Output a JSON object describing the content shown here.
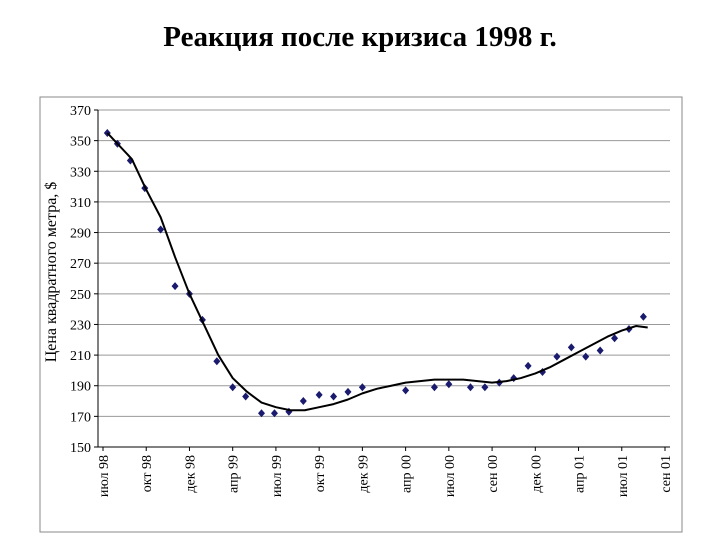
{
  "chart_data": {
    "type": "scatter_line",
    "title": "Реакция после кризиса 1998 г.",
    "ylabel": "Цена квадратного метра, $",
    "xlim": [
      0,
      39
    ],
    "xticks": [
      {
        "value": 0,
        "label": "июл 98"
      },
      {
        "value": 3,
        "label": "окт 98"
      },
      {
        "value": 6,
        "label": "дек 98"
      },
      {
        "value": 9,
        "label": "апр 99"
      },
      {
        "value": 12,
        "label": "июл 99"
      },
      {
        "value": 15,
        "label": "окт 99"
      },
      {
        "value": 18,
        "label": "дек 99"
      },
      {
        "value": 21,
        "label": "апр 00"
      },
      {
        "value": 24,
        "label": "июл 00"
      },
      {
        "value": 27,
        "label": "сен 00"
      },
      {
        "value": 30,
        "label": "дек 00"
      },
      {
        "value": 33,
        "label": "апр 01"
      },
      {
        "value": 36,
        "label": "июл 01"
      },
      {
        "value": 39,
        "label": "сен 01"
      }
    ],
    "ylim": [
      150,
      370
    ],
    "yticks": [
      150,
      170,
      190,
      210,
      230,
      250,
      270,
      290,
      310,
      330,
      350,
      370
    ],
    "grid": true,
    "series": [
      {
        "kind": "points",
        "color": "#1a1a6e",
        "x": [
          0.3,
          1.0,
          1.9,
          2.9,
          4.0,
          5.0,
          6.0,
          6.9,
          7.9,
          9.0,
          9.9,
          11.0,
          11.9,
          12.9,
          13.9,
          15.0,
          16.0,
          17.0,
          18.0,
          21.0,
          23.0,
          24.0,
          25.5,
          26.5,
          27.5,
          28.5,
          29.5,
          30.5,
          31.5,
          32.5,
          33.5,
          34.5,
          35.5,
          36.5,
          37.5
        ],
        "values": [
          355,
          348,
          337,
          319,
          292,
          255,
          250,
          233,
          206,
          189,
          183,
          172,
          172,
          173,
          180,
          184,
          183,
          186,
          189,
          187,
          189,
          191,
          189,
          189,
          192,
          195,
          203,
          199,
          209,
          215,
          209,
          213,
          221,
          227,
          235
        ]
      },
      {
        "kind": "line",
        "color": "#000000",
        "x": [
          0.3,
          2,
          3,
          4,
          5,
          6,
          7,
          8,
          9,
          10,
          11,
          12,
          13,
          14,
          15,
          16,
          17,
          18,
          19,
          20,
          21,
          22,
          23,
          24,
          25,
          26,
          27,
          28,
          29,
          30,
          31,
          32,
          33,
          34,
          35,
          36,
          37,
          37.8
        ],
        "values": [
          355,
          338,
          318,
          300,
          274,
          250,
          230,
          210,
          195,
          186,
          179,
          176,
          174,
          174,
          176,
          178,
          181,
          185,
          188,
          190,
          192,
          193,
          194,
          194,
          194,
          193,
          192,
          193,
          195,
          198,
          202,
          207,
          212,
          217,
          222,
          226,
          229,
          228
        ]
      }
    ]
  }
}
